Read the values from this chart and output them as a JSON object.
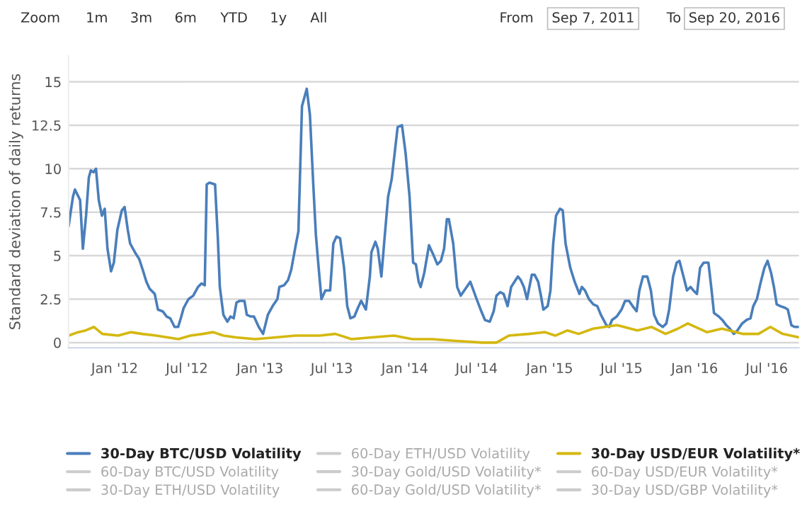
{
  "chart_data": {
    "type": "line",
    "ylabel": "Standard deviation of daily returns",
    "annotations": [
      "Zoom",
      "1m",
      "3m",
      "6m",
      "YTD",
      "1y",
      "All",
      "From",
      "Sep 7, 2011",
      "To",
      "Sep 20, 2016"
    ],
    "xlim": [
      "2011-09-07",
      "2016-09-20"
    ],
    "xticks": [
      {
        "value": "2012-01-01",
        "label": "Jan '12"
      },
      {
        "value": "2012-07-01",
        "label": "Jul '12"
      },
      {
        "value": "2013-01-01",
        "label": "Jan '13"
      },
      {
        "value": "2013-07-01",
        "label": "Jul '13"
      },
      {
        "value": "2014-01-01",
        "label": "Jan '14"
      },
      {
        "value": "2014-07-01",
        "label": "Jul '14"
      },
      {
        "value": "2015-01-01",
        "label": "Jan '15"
      },
      {
        "value": "2015-07-01",
        "label": "Jul '15"
      },
      {
        "value": "2016-01-01",
        "label": "Jan '16"
      },
      {
        "value": "2016-07-01",
        "label": "Jul '16"
      }
    ],
    "ylim": [
      -0.3,
      16.5
    ],
    "yticks": [
      0,
      2.5,
      5,
      7.5,
      10,
      12.5,
      15
    ],
    "grid": "y",
    "legend": "bottom",
    "marker": "none",
    "line_style": "solid",
    "series": [
      {
        "name": "30-Day BTC/USD Volatility",
        "color": "#4a7ebb",
        "x": [
          "2011-09-07",
          "2011-09-18",
          "2011-09-23",
          "2011-10-06",
          "2011-10-13",
          "2011-10-21",
          "2011-10-28",
          "2011-11-02",
          "2011-11-09",
          "2011-11-15",
          "2011-11-22",
          "2011-11-30",
          "2011-12-07",
          "2011-12-14",
          "2011-12-23",
          "2011-12-30",
          "2012-01-08",
          "2012-01-19",
          "2012-01-26",
          "2012-02-03",
          "2012-02-09",
          "2012-02-21",
          "2012-03-03",
          "2012-03-13",
          "2012-03-21",
          "2012-03-29",
          "2012-04-11",
          "2012-04-19",
          "2012-05-01",
          "2012-05-11",
          "2012-05-20",
          "2012-05-31",
          "2012-06-09",
          "2012-06-17",
          "2012-06-23",
          "2012-07-05",
          "2012-07-17",
          "2012-07-29",
          "2012-08-07",
          "2012-08-15",
          "2012-08-20",
          "2012-08-27",
          "2012-09-10",
          "2012-09-17",
          "2012-09-22",
          "2012-10-01",
          "2012-10-11",
          "2012-10-19",
          "2012-10-27",
          "2012-11-03",
          "2012-11-11",
          "2012-11-23",
          "2012-11-29",
          "2012-12-09",
          "2012-12-17",
          "2012-12-29",
          "2013-01-09",
          "2013-01-21",
          "2013-02-02",
          "2013-02-14",
          "2013-02-19",
          "2013-03-03",
          "2013-03-13",
          "2013-03-21",
          "2013-04-02",
          "2013-04-08",
          "2013-04-17",
          "2013-04-29",
          "2013-05-07",
          "2013-05-15",
          "2013-05-22",
          "2013-05-29",
          "2013-06-05",
          "2013-06-15",
          "2013-06-27",
          "2013-07-05",
          "2013-07-13",
          "2013-07-22",
          "2013-08-01",
          "2013-08-09",
          "2013-08-17",
          "2013-08-27",
          "2013-09-05",
          "2013-09-13",
          "2013-09-25",
          "2013-10-05",
          "2013-10-09",
          "2013-10-19",
          "2013-10-25",
          "2013-11-03",
          "2013-11-11",
          "2013-11-20",
          "2013-11-29",
          "2013-12-08",
          "2013-12-14",
          "2013-12-25",
          "2014-01-03",
          "2014-01-13",
          "2014-01-22",
          "2014-01-29",
          "2014-02-05",
          "2014-02-10",
          "2014-02-19",
          "2014-03-03",
          "2014-03-13",
          "2014-03-24",
          "2014-04-02",
          "2014-04-10",
          "2014-04-17",
          "2014-04-22",
          "2014-05-03",
          "2014-05-13",
          "2014-05-22",
          "2014-06-03",
          "2014-06-15",
          "2014-06-23",
          "2014-07-01",
          "2014-07-11",
          "2014-07-22",
          "2014-08-03",
          "2014-08-13",
          "2014-08-20",
          "2014-08-29",
          "2014-09-07",
          "2014-09-17",
          "2014-09-26",
          "2014-10-13",
          "2014-10-20",
          "2014-10-28",
          "2014-11-05",
          "2014-11-17",
          "2014-11-24",
          "2014-12-03",
          "2014-12-10",
          "2014-12-16",
          "2014-12-27",
          "2015-01-03",
          "2015-01-10",
          "2015-01-17",
          "2015-01-27",
          "2015-02-03",
          "2015-02-10",
          "2015-02-22",
          "2015-03-05",
          "2015-03-17",
          "2015-03-23",
          "2015-03-31",
          "2015-04-10",
          "2015-04-21",
          "2015-05-01",
          "2015-05-10",
          "2015-05-24",
          "2015-05-31",
          "2015-06-07",
          "2015-06-19",
          "2015-07-01",
          "2015-07-10",
          "2015-07-20",
          "2015-07-29",
          "2015-08-08",
          "2015-08-15",
          "2015-08-24",
          "2015-09-04",
          "2015-09-13",
          "2015-09-21",
          "2015-10-01",
          "2015-10-13",
          "2015-10-22",
          "2015-10-29",
          "2015-11-08",
          "2015-11-17",
          "2015-11-24",
          "2015-12-03",
          "2015-12-13",
          "2015-12-22",
          "2015-12-29",
          "2016-01-07",
          "2016-01-15",
          "2016-01-24",
          "2016-02-05",
          "2016-02-12",
          "2016-02-19",
          "2016-03-02",
          "2016-03-11",
          "2016-03-21",
          "2016-03-30",
          "2016-04-09",
          "2016-04-18",
          "2016-04-30",
          "2016-05-11",
          "2016-05-21",
          "2016-05-28",
          "2016-06-06",
          "2016-06-16",
          "2016-06-25",
          "2016-07-03",
          "2016-07-12",
          "2016-07-19",
          "2016-07-26",
          "2016-08-04",
          "2016-08-16",
          "2016-08-23",
          "2016-09-01",
          "2016-09-09",
          "2016-09-20"
        ],
        "values": [
          6.7,
          8.4,
          8.8,
          8.2,
          5.4,
          7.3,
          9.5,
          9.9,
          9.8,
          10.0,
          8.2,
          7.3,
          7.7,
          5.4,
          4.1,
          4.6,
          6.5,
          7.6,
          7.8,
          6.5,
          5.7,
          5.2,
          4.8,
          4.1,
          3.5,
          3.1,
          2.8,
          1.9,
          1.8,
          1.5,
          1.4,
          0.9,
          0.9,
          1.5,
          2.0,
          2.5,
          2.7,
          3.2,
          3.4,
          3.3,
          9.1,
          9.2,
          9.1,
          6.0,
          3.2,
          1.6,
          1.2,
          1.5,
          1.4,
          2.3,
          2.4,
          2.4,
          1.6,
          1.5,
          1.5,
          0.9,
          0.5,
          1.6,
          2.1,
          2.5,
          3.2,
          3.3,
          3.6,
          4.2,
          5.7,
          6.4,
          13.6,
          14.6,
          13.1,
          9.3,
          6.2,
          4.3,
          2.5,
          3.0,
          3.0,
          5.7,
          6.1,
          6.0,
          4.3,
          2.1,
          1.4,
          1.5,
          2.0,
          2.4,
          1.9,
          3.8,
          5.2,
          5.8,
          5.4,
          3.8,
          6.0,
          8.4,
          9.4,
          11.2,
          12.4,
          12.5,
          10.9,
          8.4,
          4.6,
          4.5,
          3.5,
          3.2,
          4.0,
          5.6,
          5.1,
          4.5,
          4.7,
          5.4,
          7.1,
          7.1,
          5.7,
          3.2,
          2.7,
          3.1,
          3.5,
          3.0,
          2.5,
          1.9,
          1.3,
          1.2,
          1.8,
          2.7,
          2.9,
          2.8,
          2.1,
          3.2,
          3.8,
          3.6,
          3.2,
          2.5,
          3.9,
          3.9,
          3.5,
          2.7,
          1.9,
          2.1,
          3.0,
          5.7,
          7.3,
          7.7,
          7.6,
          5.7,
          4.3,
          3.5,
          2.8,
          3.2,
          3.0,
          2.5,
          2.2,
          2.1,
          1.6,
          1.0,
          0.9,
          1.3,
          1.5,
          1.9,
          2.4,
          2.4,
          2.1,
          1.8,
          3.0,
          3.8,
          3.8,
          3.0,
          1.6,
          1.1,
          0.9,
          1.1,
          1.9,
          3.8,
          4.6,
          4.7,
          3.9,
          3.0,
          3.2,
          3.0,
          2.8,
          4.3,
          4.6,
          4.6,
          3.2,
          1.7,
          1.5,
          1.3,
          1.0,
          0.8,
          0.5,
          0.7,
          1.1,
          1.3,
          1.4,
          2.1,
          2.5,
          3.5,
          4.3,
          4.7,
          4.0,
          3.2,
          2.2,
          2.1,
          2.0,
          1.9,
          1.0,
          0.9,
          0.9
        ]
      },
      {
        "name": "60-Day BTC/USD Volatility",
        "color": "#cccccc"
      },
      {
        "name": "30-Day ETH/USD Volatility",
        "color": "#cccccc"
      },
      {
        "name": "60-Day ETH/USD Volatility",
        "color": "#cccccc"
      },
      {
        "name": "30-Day Gold/USD Volatility*",
        "color": "#cccccc"
      },
      {
        "name": "60-Day Gold/USD Volatility*",
        "color": "#cccccc"
      },
      {
        "name": "30-Day USD/EUR Volatility*",
        "color": "#d4b80f",
        "x": [
          "2011-09-07",
          "2011-10-01",
          "2011-10-20",
          "2011-11-10",
          "2011-12-01",
          "2012-01-10",
          "2012-02-10",
          "2012-03-10",
          "2012-04-15",
          "2012-06-10",
          "2012-07-10",
          "2012-08-10",
          "2012-09-05",
          "2012-10-01",
          "2012-11-01",
          "2012-12-20",
          "2013-02-10",
          "2013-04-01",
          "2013-06-01",
          "2013-07-10",
          "2013-08-20",
          "2013-10-10",
          "2013-12-05",
          "2014-01-20",
          "2014-03-10",
          "2014-05-10",
          "2014-07-15",
          "2014-08-20",
          "2014-09-20",
          "2014-11-10",
          "2014-12-20",
          "2015-01-15",
          "2015-02-15",
          "2015-03-15",
          "2015-04-20",
          "2015-05-20",
          "2015-06-20",
          "2015-08-10",
          "2015-09-15",
          "2015-10-20",
          "2015-11-20",
          "2015-12-15",
          "2016-02-01",
          "2016-03-10",
          "2016-05-01",
          "2016-06-10",
          "2016-07-10",
          "2016-08-10",
          "2016-09-20"
        ],
        "values": [
          0.4,
          0.6,
          0.7,
          0.9,
          0.5,
          0.4,
          0.6,
          0.5,
          0.4,
          0.2,
          0.4,
          0.5,
          0.6,
          0.4,
          0.3,
          0.2,
          0.3,
          0.4,
          0.4,
          0.5,
          0.2,
          0.3,
          0.4,
          0.2,
          0.2,
          0.1,
          0.0,
          0.0,
          0.4,
          0.5,
          0.6,
          0.4,
          0.7,
          0.5,
          0.8,
          0.9,
          1.0,
          0.7,
          0.9,
          0.5,
          0.8,
          1.1,
          0.6,
          0.8,
          0.5,
          0.5,
          0.9,
          0.5,
          0.3
        ]
      },
      {
        "name": "60-Day USD/EUR Volatility*",
        "color": "#cccccc"
      },
      {
        "name": "30-Day USD/GBP Volatility*",
        "color": "#cccccc"
      }
    ]
  }
}
